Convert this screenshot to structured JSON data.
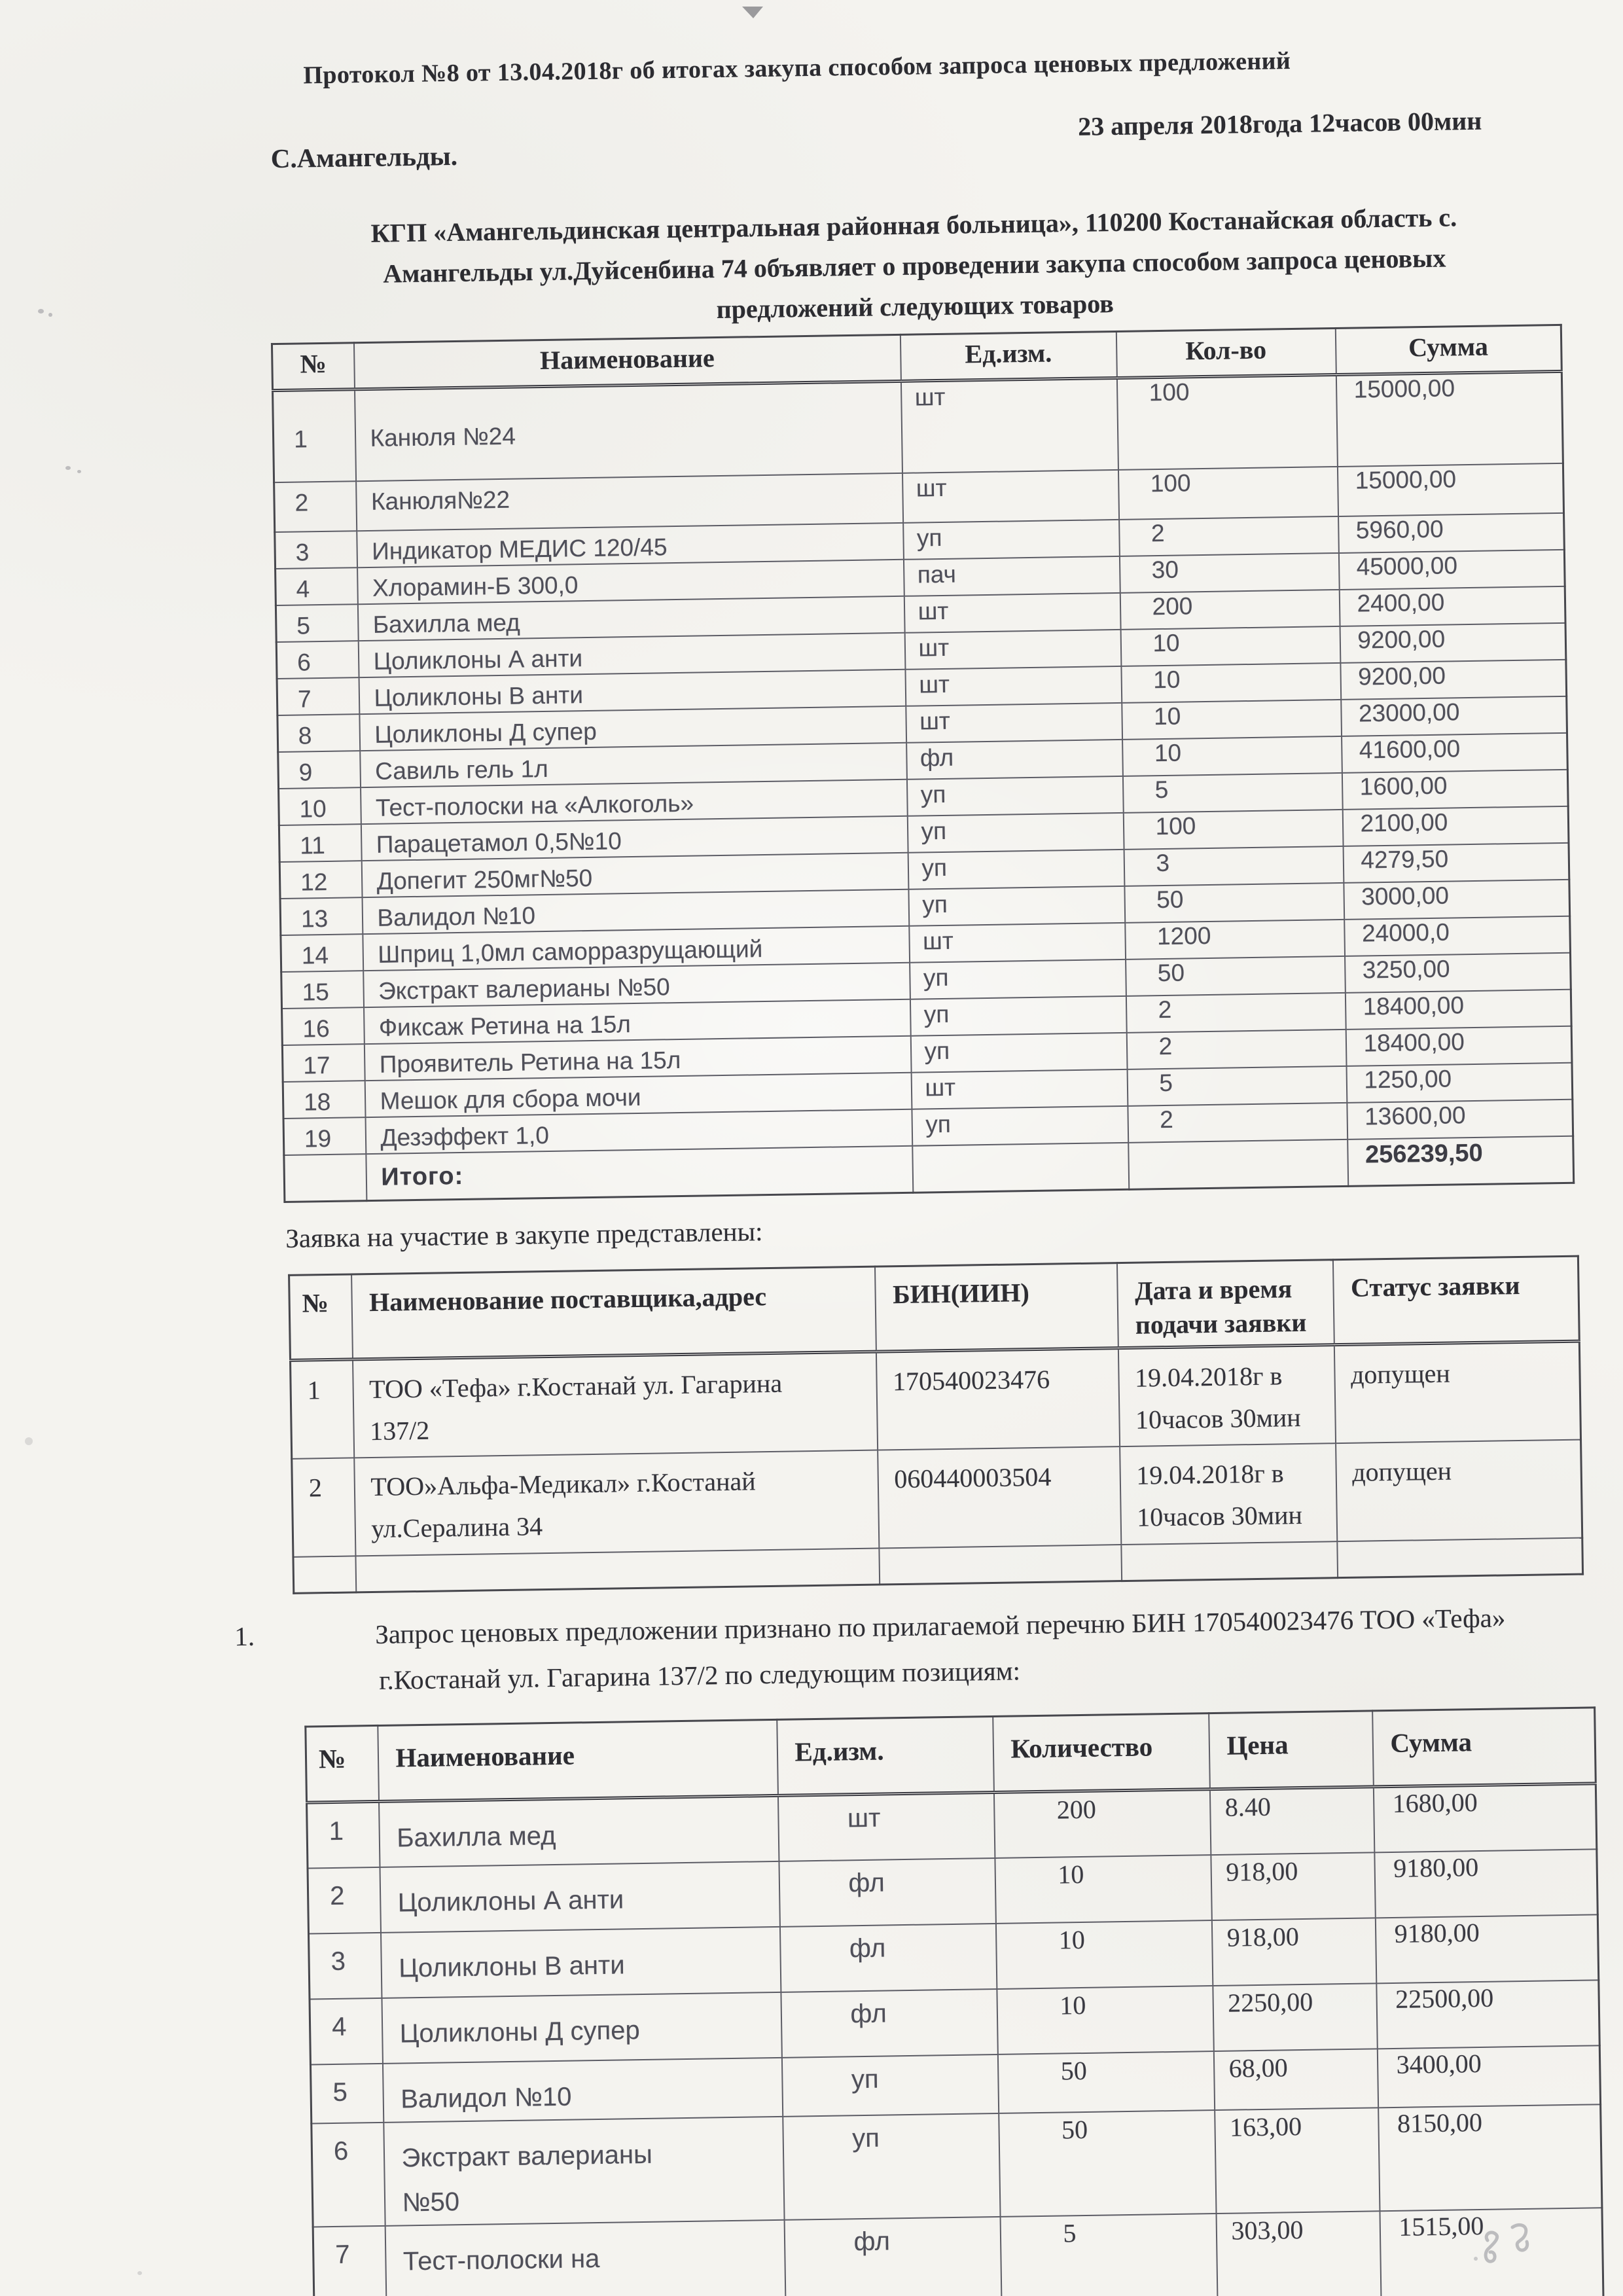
{
  "colors": {
    "paper": "#f4f3ef",
    "ink": "#2c2c31",
    "faded_ink": "#4f4f59",
    "table_line": "#5d5d66"
  },
  "header": {
    "title": "Протокол №8 от 13.04.2018г об итогах закупа способом запроса ценовых предложений",
    "place": "С.Амангельды.",
    "datetime": "23 апреля 2018года 12часов 00мин"
  },
  "intro": "КГП «Амангельдинская центральная районная больница», 110200 Костанайская область с. Амангельды ул.Дуйсенбина 74 объявляет о проведении закупа способом запроса ценовых предложений следующих товаров",
  "goods_table": {
    "headers": [
      "№",
      "Наименование",
      "Ед.изм.",
      "Кол-во",
      "Сумма"
    ],
    "rows": [
      [
        "1",
        "Канюля №24",
        "шт",
        "100",
        "15000,00"
      ],
      [
        "2",
        "Канюля№22",
        "шт",
        "100",
        "15000,00"
      ],
      [
        "3",
        "Индикатор МЕДИС 120/45",
        "уп",
        "2",
        "5960,00"
      ],
      [
        "4",
        "Хлорамин-Б 300,0",
        "пач",
        "30",
        "45000,00"
      ],
      [
        "5",
        "Бахилла мед",
        "шт",
        "200",
        "2400,00"
      ],
      [
        "6",
        "Цоликлоны А анти",
        "шт",
        "10",
        "9200,00"
      ],
      [
        "7",
        "Цоликлоны В анти",
        "шт",
        "10",
        "9200,00"
      ],
      [
        "8",
        "Цоликлоны Д супер",
        "шт",
        "10",
        "23000,00"
      ],
      [
        "9",
        "Савиль гель 1л",
        "фл",
        "10",
        "41600,00"
      ],
      [
        "10",
        "Тест-полоски на «Алкоголь»",
        "уп",
        "5",
        "1600,00"
      ],
      [
        "11",
        "Парацетамол 0,5№10",
        "уп",
        "100",
        "2100,00"
      ],
      [
        "12",
        "Допегит 250мг№50",
        "уп",
        "3",
        "4279,50"
      ],
      [
        "13",
        "Валидол №10",
        "уп",
        "50",
        "3000,00"
      ],
      [
        "14",
        "Шприц 1,0мл саморразрущающий",
        "шт",
        "1200",
        "24000,0"
      ],
      [
        "15",
        "Экстракт валерианы №50",
        "уп",
        "50",
        "3250,00"
      ],
      [
        "16",
        "Фиксаж Ретина на 15л",
        "уп",
        "2",
        "18400,00"
      ],
      [
        "17",
        "Проявитель Ретина на 15л",
        "уп",
        "2",
        "18400,00"
      ],
      [
        "18",
        "Мешок для сбора мочи",
        "шт",
        "5",
        "1250,00"
      ],
      [
        "19",
        "Дезэффект 1,0",
        "уп",
        "2",
        "13600,00"
      ]
    ],
    "total_label": "Итого:",
    "total_value": "256239,50"
  },
  "applications_heading": "Заявка на участие в закупе представлены:",
  "suppliers_table": {
    "headers": [
      "№",
      "Наименование поставщика,адрес",
      "БИН(ИИН)",
      "Дата и время подачи заявки",
      "Статус заявки"
    ],
    "rows": [
      [
        "1",
        "ТОО «Тефа» г.Костанай ул. Гагарина 137/2",
        "170540023476",
        "19.04.2018г в 10часов 30мин",
        "допущен"
      ],
      [
        "2",
        "ТОО»Альфа-Медикал» г.Костанай ул.Сералина 34",
        "060440003504",
        "19.04.2018г в 10часов 30мин",
        "допущен"
      ]
    ]
  },
  "decision": {
    "number": "1.",
    "text": "Запрос ценовых предложении признано по прилагаемой перечню БИН 170540023476 ТОО «Тефа» г.Костанай ул. Гагарина 137/2 по следующим позициям:"
  },
  "awarded_table": {
    "headers": [
      "№",
      "Наименование",
      "Ед.изм.",
      "Количество",
      "Цена",
      "Сумма"
    ],
    "rows": [
      [
        "1",
        "Бахилла мед",
        "шт",
        "200",
        "8.40",
        "1680,00"
      ],
      [
        "2",
        "Цоликлоны А анти",
        "фл",
        "10",
        "918,00",
        "9180,00"
      ],
      [
        "3",
        "Цоликлоны В анти",
        "фл",
        "10",
        "918,00",
        "9180,00"
      ],
      [
        "4",
        "Цоликлоны Д супер",
        "фл",
        "10",
        "2250,00",
        "22500,00"
      ],
      [
        "5",
        "Валидол №10",
        "уп",
        "50",
        "68,00",
        "3400,00"
      ],
      [
        "6",
        "Экстракт валерианы №50",
        "уп",
        "50",
        "163,00",
        "8150,00"
      ],
      [
        "7",
        "Тест-полоски на «Алкоголь»",
        "фл",
        "5",
        "303,00",
        "1515,00"
      ]
    ]
  }
}
